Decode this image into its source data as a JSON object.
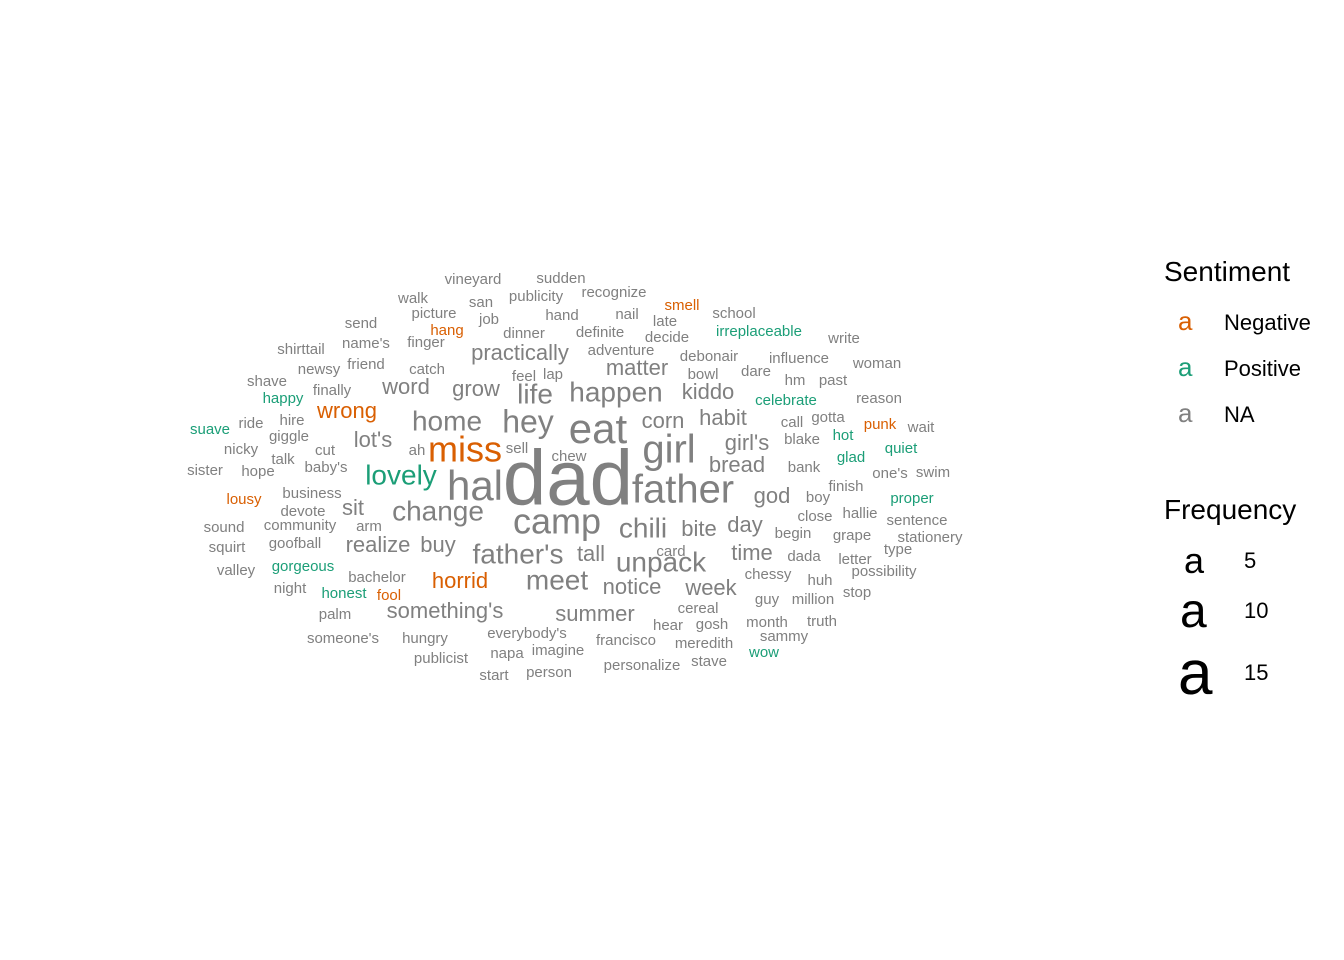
{
  "colors": {
    "Negative": "#D95F02",
    "Positive": "#1B9E77",
    "NA": "#808080"
  },
  "legend": {
    "sentiment_title": "Sentiment",
    "sentiment_key_glyph": "a",
    "sentiment_items": [
      "Negative",
      "Positive",
      "NA"
    ],
    "frequency_title": "Frequency",
    "frequency_key_glyph": "a",
    "frequency_items": [
      "5",
      "10",
      "15"
    ]
  },
  "chart_data": {
    "type": "wordcloud",
    "value_label": "Frequency",
    "color_label": "Sentiment",
    "words": [
      {
        "word": "dad",
        "freq": 17,
        "sentiment": "NA"
      },
      {
        "word": "hal",
        "freq": 10,
        "sentiment": "NA"
      },
      {
        "word": "eat",
        "freq": 10,
        "sentiment": "NA"
      },
      {
        "word": "girl",
        "freq": 9,
        "sentiment": "NA"
      },
      {
        "word": "father",
        "freq": 9,
        "sentiment": "NA"
      },
      {
        "word": "camp",
        "freq": 8,
        "sentiment": "NA"
      },
      {
        "word": "miss",
        "freq": 8,
        "sentiment": "Negative"
      },
      {
        "word": "hey",
        "freq": 7,
        "sentiment": "NA"
      },
      {
        "word": "lovely",
        "freq": 6,
        "sentiment": "Positive"
      },
      {
        "word": "happen",
        "freq": 6,
        "sentiment": "NA"
      },
      {
        "word": "home",
        "freq": 6,
        "sentiment": "NA"
      },
      {
        "word": "life",
        "freq": 6,
        "sentiment": "NA"
      },
      {
        "word": "unpack",
        "freq": 6,
        "sentiment": "NA"
      },
      {
        "word": "father's",
        "freq": 6,
        "sentiment": "NA"
      },
      {
        "word": "chili",
        "freq": 6,
        "sentiment": "NA"
      },
      {
        "word": "change",
        "freq": 6,
        "sentiment": "NA"
      },
      {
        "word": "meet",
        "freq": 6,
        "sentiment": "NA"
      },
      {
        "word": "practically",
        "freq": 5,
        "sentiment": "NA"
      },
      {
        "word": "kiddo",
        "freq": 5,
        "sentiment": "NA"
      },
      {
        "word": "wrong",
        "freq": 5,
        "sentiment": "Negative"
      },
      {
        "word": "horrid",
        "freq": 5,
        "sentiment": "Negative"
      },
      {
        "word": "something's",
        "freq": 5,
        "sentiment": "NA"
      },
      {
        "word": "week",
        "freq": 5,
        "sentiment": "NA"
      },
      {
        "word": "summer",
        "freq": 5,
        "sentiment": "NA"
      },
      {
        "word": "matter",
        "freq": 5,
        "sentiment": "NA"
      },
      {
        "word": "word",
        "freq": 5,
        "sentiment": "NA"
      },
      {
        "word": "grow",
        "freq": 5,
        "sentiment": "NA"
      },
      {
        "word": "corn",
        "freq": 5,
        "sentiment": "NA"
      },
      {
        "word": "habit",
        "freq": 5,
        "sentiment": "NA"
      },
      {
        "word": "girl's",
        "freq": 5,
        "sentiment": "NA"
      },
      {
        "word": "bread",
        "freq": 5,
        "sentiment": "NA"
      },
      {
        "word": "god",
        "freq": 5,
        "sentiment": "NA"
      },
      {
        "word": "lot's",
        "freq": 5,
        "sentiment": "NA"
      },
      {
        "word": "realize",
        "freq": 5,
        "sentiment": "NA"
      },
      {
        "word": "buy",
        "freq": 5,
        "sentiment": "NA"
      },
      {
        "word": "tall",
        "freq": 5,
        "sentiment": "NA"
      },
      {
        "word": "notice",
        "freq": 5,
        "sentiment": "NA"
      },
      {
        "word": "bite",
        "freq": 5,
        "sentiment": "NA"
      },
      {
        "word": "day",
        "freq": 5,
        "sentiment": "NA"
      },
      {
        "word": "time",
        "freq": 5,
        "sentiment": "NA"
      },
      {
        "word": "sit",
        "freq": 5,
        "sentiment": "NA"
      },
      {
        "word": "vineyard",
        "freq": 3,
        "sentiment": "NA"
      },
      {
        "word": "sudden",
        "freq": 3,
        "sentiment": "NA"
      },
      {
        "word": "walk",
        "freq": 3,
        "sentiment": "NA"
      },
      {
        "word": "san",
        "freq": 3,
        "sentiment": "NA"
      },
      {
        "word": "publicity",
        "freq": 3,
        "sentiment": "NA"
      },
      {
        "word": "recognize",
        "freq": 3,
        "sentiment": "NA"
      },
      {
        "word": "smell",
        "freq": 3,
        "sentiment": "Negative"
      },
      {
        "word": "picture",
        "freq": 3,
        "sentiment": "NA"
      },
      {
        "word": "job",
        "freq": 3,
        "sentiment": "NA"
      },
      {
        "word": "hand",
        "freq": 3,
        "sentiment": "NA"
      },
      {
        "word": "nail",
        "freq": 3,
        "sentiment": "NA"
      },
      {
        "word": "late",
        "freq": 3,
        "sentiment": "NA"
      },
      {
        "word": "school",
        "freq": 3,
        "sentiment": "NA"
      },
      {
        "word": "send",
        "freq": 3,
        "sentiment": "NA"
      },
      {
        "word": "hang",
        "freq": 3,
        "sentiment": "Negative"
      },
      {
        "word": "dinner",
        "freq": 3,
        "sentiment": "NA"
      },
      {
        "word": "definite",
        "freq": 3,
        "sentiment": "NA"
      },
      {
        "word": "decide",
        "freq": 3,
        "sentiment": "NA"
      },
      {
        "word": "irreplaceable",
        "freq": 3,
        "sentiment": "Positive"
      },
      {
        "word": "write",
        "freq": 3,
        "sentiment": "NA"
      },
      {
        "word": "shirttail",
        "freq": 3,
        "sentiment": "NA"
      },
      {
        "word": "name's",
        "freq": 3,
        "sentiment": "NA"
      },
      {
        "word": "finger",
        "freq": 3,
        "sentiment": "NA"
      },
      {
        "word": "adventure",
        "freq": 3,
        "sentiment": "NA"
      },
      {
        "word": "debonair",
        "freq": 3,
        "sentiment": "NA"
      },
      {
        "word": "influence",
        "freq": 3,
        "sentiment": "NA"
      },
      {
        "word": "woman",
        "freq": 3,
        "sentiment": "NA"
      },
      {
        "word": "friend",
        "freq": 3,
        "sentiment": "NA"
      },
      {
        "word": "newsy",
        "freq": 3,
        "sentiment": "NA"
      },
      {
        "word": "catch",
        "freq": 3,
        "sentiment": "NA"
      },
      {
        "word": "shave",
        "freq": 3,
        "sentiment": "NA"
      },
      {
        "word": "feel",
        "freq": 3,
        "sentiment": "NA"
      },
      {
        "word": "lap",
        "freq": 3,
        "sentiment": "NA"
      },
      {
        "word": "bowl",
        "freq": 3,
        "sentiment": "NA"
      },
      {
        "word": "dare",
        "freq": 3,
        "sentiment": "NA"
      },
      {
        "word": "hm",
        "freq": 3,
        "sentiment": "NA"
      },
      {
        "word": "past",
        "freq": 3,
        "sentiment": "NA"
      },
      {
        "word": "finally",
        "freq": 3,
        "sentiment": "NA"
      },
      {
        "word": "happy",
        "freq": 3,
        "sentiment": "Positive"
      },
      {
        "word": "celebrate",
        "freq": 3,
        "sentiment": "Positive"
      },
      {
        "word": "reason",
        "freq": 3,
        "sentiment": "NA"
      },
      {
        "word": "suave",
        "freq": 3,
        "sentiment": "Positive"
      },
      {
        "word": "ride",
        "freq": 3,
        "sentiment": "NA"
      },
      {
        "word": "hire",
        "freq": 3,
        "sentiment": "NA"
      },
      {
        "word": "call",
        "freq": 3,
        "sentiment": "NA"
      },
      {
        "word": "gotta",
        "freq": 3,
        "sentiment": "NA"
      },
      {
        "word": "punk",
        "freq": 3,
        "sentiment": "Negative"
      },
      {
        "word": "wait",
        "freq": 3,
        "sentiment": "NA"
      },
      {
        "word": "giggle",
        "freq": 3,
        "sentiment": "NA"
      },
      {
        "word": "hot",
        "freq": 3,
        "sentiment": "Positive"
      },
      {
        "word": "blake",
        "freq": 3,
        "sentiment": "NA"
      },
      {
        "word": "nicky",
        "freq": 3,
        "sentiment": "NA"
      },
      {
        "word": "cut",
        "freq": 3,
        "sentiment": "NA"
      },
      {
        "word": "ah",
        "freq": 3,
        "sentiment": "NA"
      },
      {
        "word": "sell",
        "freq": 3,
        "sentiment": "NA"
      },
      {
        "word": "quiet",
        "freq": 3,
        "sentiment": "Positive"
      },
      {
        "word": "talk",
        "freq": 3,
        "sentiment": "NA"
      },
      {
        "word": "chew",
        "freq": 3,
        "sentiment": "NA"
      },
      {
        "word": "glad",
        "freq": 3,
        "sentiment": "Positive"
      },
      {
        "word": "sister",
        "freq": 3,
        "sentiment": "NA"
      },
      {
        "word": "hope",
        "freq": 3,
        "sentiment": "NA"
      },
      {
        "word": "baby's",
        "freq": 3,
        "sentiment": "NA"
      },
      {
        "word": "bank",
        "freq": 3,
        "sentiment": "NA"
      },
      {
        "word": "one's",
        "freq": 3,
        "sentiment": "NA"
      },
      {
        "word": "swim",
        "freq": 3,
        "sentiment": "NA"
      },
      {
        "word": "finish",
        "freq": 3,
        "sentiment": "NA"
      },
      {
        "word": "lousy",
        "freq": 3,
        "sentiment": "Negative"
      },
      {
        "word": "business",
        "freq": 3,
        "sentiment": "NA"
      },
      {
        "word": "boy",
        "freq": 3,
        "sentiment": "NA"
      },
      {
        "word": "proper",
        "freq": 3,
        "sentiment": "Positive"
      },
      {
        "word": "devote",
        "freq": 3,
        "sentiment": "NA"
      },
      {
        "word": "hallie",
        "freq": 3,
        "sentiment": "NA"
      },
      {
        "word": "close",
        "freq": 3,
        "sentiment": "NA"
      },
      {
        "word": "sentence",
        "freq": 3,
        "sentiment": "NA"
      },
      {
        "word": "sound",
        "freq": 3,
        "sentiment": "NA"
      },
      {
        "word": "community",
        "freq": 3,
        "sentiment": "NA"
      },
      {
        "word": "arm",
        "freq": 3,
        "sentiment": "NA"
      },
      {
        "word": "begin",
        "freq": 3,
        "sentiment": "NA"
      },
      {
        "word": "grape",
        "freq": 3,
        "sentiment": "NA"
      },
      {
        "word": "stationery",
        "freq": 3,
        "sentiment": "NA"
      },
      {
        "word": "squirt",
        "freq": 3,
        "sentiment": "NA"
      },
      {
        "word": "goofball",
        "freq": 3,
        "sentiment": "NA"
      },
      {
        "word": "card",
        "freq": 3,
        "sentiment": "NA"
      },
      {
        "word": "type",
        "freq": 3,
        "sentiment": "NA"
      },
      {
        "word": "dada",
        "freq": 3,
        "sentiment": "NA"
      },
      {
        "word": "letter",
        "freq": 3,
        "sentiment": "NA"
      },
      {
        "word": "gorgeous",
        "freq": 3,
        "sentiment": "Positive"
      },
      {
        "word": "valley",
        "freq": 3,
        "sentiment": "NA"
      },
      {
        "word": "possibility",
        "freq": 3,
        "sentiment": "NA"
      },
      {
        "word": "chessy",
        "freq": 3,
        "sentiment": "NA"
      },
      {
        "word": "bachelor",
        "freq": 3,
        "sentiment": "NA"
      },
      {
        "word": "huh",
        "freq": 3,
        "sentiment": "NA"
      },
      {
        "word": "night",
        "freq": 3,
        "sentiment": "NA"
      },
      {
        "word": "honest",
        "freq": 3,
        "sentiment": "Positive"
      },
      {
        "word": "fool",
        "freq": 3,
        "sentiment": "Negative"
      },
      {
        "word": "stop",
        "freq": 3,
        "sentiment": "NA"
      },
      {
        "word": "guy",
        "freq": 3,
        "sentiment": "NA"
      },
      {
        "word": "million",
        "freq": 3,
        "sentiment": "NA"
      },
      {
        "word": "cereal",
        "freq": 3,
        "sentiment": "NA"
      },
      {
        "word": "palm",
        "freq": 3,
        "sentiment": "NA"
      },
      {
        "word": "hear",
        "freq": 3,
        "sentiment": "NA"
      },
      {
        "word": "gosh",
        "freq": 3,
        "sentiment": "NA"
      },
      {
        "word": "month",
        "freq": 3,
        "sentiment": "NA"
      },
      {
        "word": "truth",
        "freq": 3,
        "sentiment": "NA"
      },
      {
        "word": "everybody's",
        "freq": 3,
        "sentiment": "NA"
      },
      {
        "word": "sammy",
        "freq": 3,
        "sentiment": "NA"
      },
      {
        "word": "someone's",
        "freq": 3,
        "sentiment": "NA"
      },
      {
        "word": "hungry",
        "freq": 3,
        "sentiment": "NA"
      },
      {
        "word": "francisco",
        "freq": 3,
        "sentiment": "NA"
      },
      {
        "word": "meredith",
        "freq": 3,
        "sentiment": "NA"
      },
      {
        "word": "napa",
        "freq": 3,
        "sentiment": "NA"
      },
      {
        "word": "imagine",
        "freq": 3,
        "sentiment": "NA"
      },
      {
        "word": "wow",
        "freq": 3,
        "sentiment": "Positive"
      },
      {
        "word": "publicist",
        "freq": 3,
        "sentiment": "NA"
      },
      {
        "word": "stave",
        "freq": 3,
        "sentiment": "NA"
      },
      {
        "word": "personalize",
        "freq": 3,
        "sentiment": "NA"
      },
      {
        "word": "start",
        "freq": 3,
        "sentiment": "NA"
      },
      {
        "word": "person",
        "freq": 3,
        "sentiment": "NA"
      }
    ]
  }
}
